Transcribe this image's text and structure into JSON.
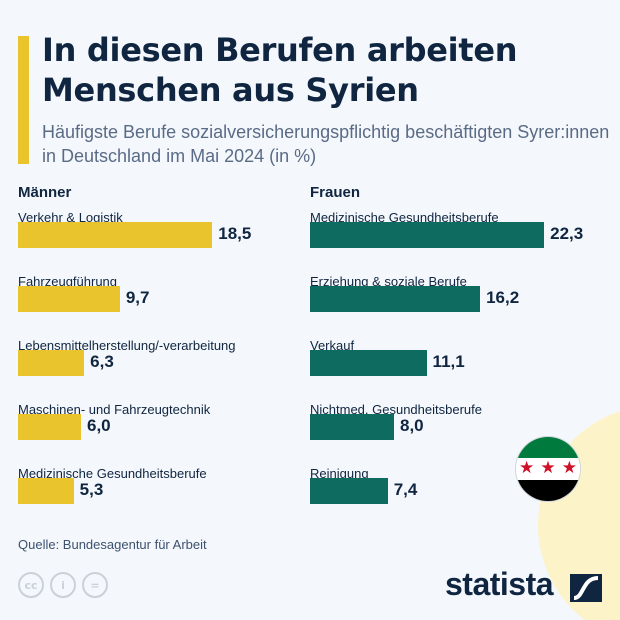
{
  "title": "In diesen Berufen arbeiten Menschen aus Syrien",
  "subtitle": "Häufigste Berufe sozialversicherungspflichtig beschäftigten Syrer:innen in Deutschland im Mai 2024 (in %)",
  "source": "Quelle: Bundesagentur für Arbeit",
  "brand": "statista",
  "colors": {
    "men": "#e9c42c",
    "women": "#0e6b5f",
    "text": "#0f2540"
  },
  "chart_data": [
    {
      "type": "bar",
      "orientation": "horizontal",
      "title": "Männer",
      "categories": [
        "Verkehr & Logistik",
        "Fahrzeugführung",
        "Lebensmittelherstellung/-verarbeitung",
        "Maschinen- und Fahrzeugtechnik",
        "Medizinische Gesundheitsberufe"
      ],
      "values": [
        18.5,
        9.7,
        6.3,
        6.0,
        5.3
      ],
      "labels": [
        "18,5",
        "9,7",
        "6,3",
        "6,0",
        "5,3"
      ]
    },
    {
      "type": "bar",
      "orientation": "horizontal",
      "title": "Frauen",
      "categories": [
        "Medizinische Gesundheitsberufe",
        "Erziehung & soziale Berufe",
        "Verkauf",
        "Nichtmed. Gesundheitsberufe",
        "Reinigung"
      ],
      "values": [
        22.3,
        16.2,
        11.1,
        8.0,
        7.4
      ],
      "labels": [
        "22,3",
        "16,2",
        "11,1",
        "8,0",
        "7,4"
      ]
    }
  ],
  "icons": [
    "syria-flag-icon",
    "cc-icon",
    "attribution-icon",
    "no-derivatives-icon",
    "statista-logo-icon"
  ]
}
